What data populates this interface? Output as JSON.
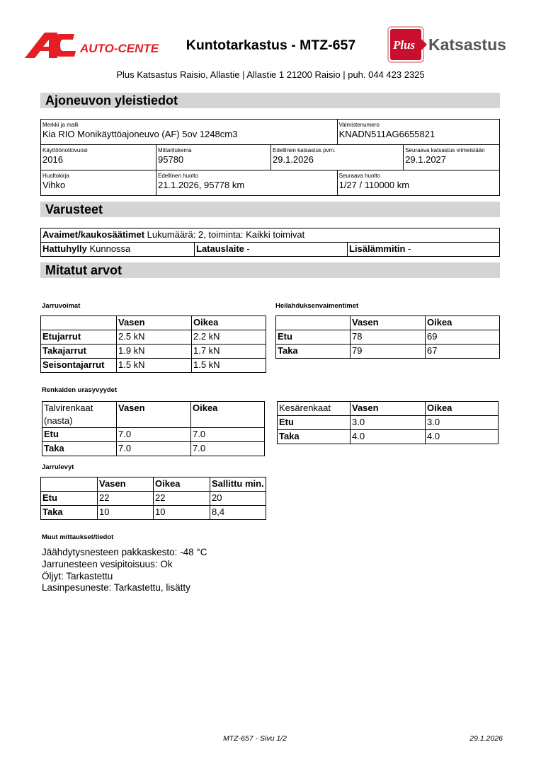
{
  "header": {
    "title": "Kuntotarkastus - MTZ-657",
    "address": "Plus Katsastus Raisio, Allastie | Allastie 1 21200 Raisio | puh. 044 423 2325",
    "logo_left": {
      "mark": "AC",
      "text": "AUTO-CENTER",
      "color": "#e31e24"
    },
    "logo_right": {
      "mark": "Plus",
      "text": "Katsastus",
      "color": "#c8102e",
      "text_color": "#555555"
    }
  },
  "sections": {
    "general": "Ajoneuvon yleistiedot",
    "equipment": "Varusteet",
    "measured": "Mitatut arvot"
  },
  "general": {
    "make_label": "Merkki ja malli",
    "make": "Kia RIO Monikäyttöajoneuvo (AF) 5ov 1248cm3",
    "vin_label": "Valmistenumero",
    "vin": "KNADN511AG6655821",
    "year_label": "Käyttöönottovuosi",
    "year": "2016",
    "odo_label": "Mittarilukema",
    "odo": "95780",
    "prev_insp_label": "Edellinen katsastus pvm.",
    "prev_insp": "29.1.2026",
    "next_insp_label": "Seuraava katsastus viimeistään",
    "next_insp": "29.1.2027",
    "book_label": "Huoltokirja",
    "book": "Vihko",
    "prev_service_label": "Edellinen huolto",
    "prev_service": "21.1.2026, 95778 km",
    "next_service_label": "Seuraava huolto",
    "next_service": "1/27 / 110000 km"
  },
  "equipment": {
    "keys_label": "Avaimet/kaukosäätimet",
    "keys": "Lukumäärä: 2, toiminta: Kaikki toimivat",
    "shelf_label": "Hattuhylly",
    "shelf": "Kunnossa",
    "charger_label": "Latauslaite",
    "charger": "-",
    "heater_label": "Lisälämmitin",
    "heater": "-"
  },
  "brakes": {
    "title": "Jarruvoimat",
    "cols": [
      "",
      "Vasen",
      "Oikea"
    ],
    "rows": [
      [
        "Etujarrut",
        "2.5 kN",
        "2.2 kN"
      ],
      [
        "Takajarrut",
        "1.9 kN",
        "1.7 kN"
      ],
      [
        "Seisontajarrut",
        "1.5 kN",
        "1.5 kN"
      ]
    ]
  },
  "shocks": {
    "title": "Heilahduksenvaimentimet",
    "cols": [
      "",
      "Vasen",
      "Oikea"
    ],
    "rows": [
      [
        "Etu",
        "78",
        "69"
      ],
      [
        "Taka",
        "79",
        "67"
      ]
    ]
  },
  "tires_title": "Renkaiden urasyvyydet",
  "winter": {
    "cols": [
      "Talvirenkaat (nasta)",
      "Vasen",
      "Oikea"
    ],
    "rows": [
      [
        "Etu",
        "7.0",
        "7.0"
      ],
      [
        "Taka",
        "7.0",
        "7.0"
      ]
    ]
  },
  "summer": {
    "cols": [
      "Kesärenkaat",
      "Vasen",
      "Oikea"
    ],
    "rows": [
      [
        "Etu",
        "3.0",
        "3.0"
      ],
      [
        "Taka",
        "4.0",
        "4.0"
      ]
    ]
  },
  "discs": {
    "title": "Jarrulevyt",
    "cols": [
      "",
      "Vasen",
      "Oikea",
      "Sallittu min."
    ],
    "rows": [
      [
        "Etu",
        "22",
        "22",
        "20"
      ],
      [
        "Taka",
        "10",
        "10",
        "8,4"
      ]
    ]
  },
  "other": {
    "title": "Muut mittaukset/tiedot",
    "lines": [
      "Jäähdytysnesteen pakkaskesto: -48 °C",
      "Jarrunesteen vesipitoisuus: Ok",
      "Öljyt: Tarkastettu",
      "Lasinpesuneste: Tarkastettu, lisätty"
    ]
  },
  "footer": {
    "page": "MTZ-657 - Sivu 1/2",
    "date": "29.1.2026"
  }
}
